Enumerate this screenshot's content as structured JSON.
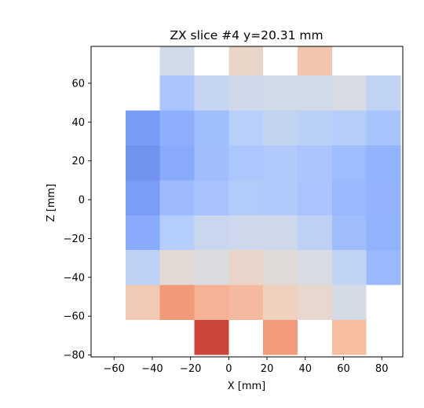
{
  "chart_data": {
    "type": "heatmap",
    "title": "ZX slice #4 y=20.31 mm",
    "xlabel": "X [mm]",
    "ylabel": "Z [mm]",
    "xlim": [
      -72,
      91
    ],
    "ylim": [
      -81,
      79
    ],
    "x_ticks": [
      "−60",
      "−40",
      "−20",
      "0",
      "20",
      "40",
      "60",
      "80"
    ],
    "x_tick_values": [
      -60,
      -40,
      -20,
      0,
      20,
      40,
      60,
      80
    ],
    "y_ticks": [
      "−80",
      "−60",
      "−40",
      "−20",
      "0",
      "20",
      "40",
      "60"
    ],
    "y_tick_values": [
      -80,
      -60,
      -40,
      -20,
      0,
      20,
      40,
      60
    ],
    "colormap": "coolwarm",
    "x_bin_edges": [
      -54,
      -36,
      -18,
      0,
      18,
      36,
      54,
      72,
      90
    ],
    "z_bin_edges": [
      -80,
      -62,
      -44,
      -26,
      -8,
      10,
      28,
      46,
      64,
      79
    ],
    "cells": [
      {
        "x": 1,
        "z": 8,
        "color": "#d1dae9"
      },
      {
        "x": 3,
        "z": 8,
        "color": "#ead5c9"
      },
      {
        "x": 5,
        "z": 8,
        "color": "#f2c6ad"
      },
      {
        "x": 1,
        "z": 7,
        "color": "#abc6fc"
      },
      {
        "x": 2,
        "z": 7,
        "color": "#c6d5f0"
      },
      {
        "x": 3,
        "z": 7,
        "color": "#cfd9ea"
      },
      {
        "x": 4,
        "z": 7,
        "color": "#d1dae9"
      },
      {
        "x": 5,
        "z": 7,
        "color": "#d1dae9"
      },
      {
        "x": 6,
        "z": 7,
        "color": "#d8dce2"
      },
      {
        "x": 7,
        "z": 7,
        "color": "#c1d3f3"
      },
      {
        "x": 0,
        "z": 6,
        "color": "#789df7"
      },
      {
        "x": 1,
        "z": 6,
        "color": "#8eb0fc"
      },
      {
        "x": 2,
        "z": 6,
        "color": "#9fbefe"
      },
      {
        "x": 3,
        "z": 6,
        "color": "#b8cffa"
      },
      {
        "x": 4,
        "z": 6,
        "color": "#c2d3f2"
      },
      {
        "x": 5,
        "z": 6,
        "color": "#bbd0f6"
      },
      {
        "x": 6,
        "z": 6,
        "color": "#b6cdf9"
      },
      {
        "x": 7,
        "z": 6,
        "color": "#a8c4fd"
      },
      {
        "x": 0,
        "z": 5,
        "color": "#6f93ef"
      },
      {
        "x": 1,
        "z": 5,
        "color": "#87aafa"
      },
      {
        "x": 2,
        "z": 5,
        "color": "#a0befe"
      },
      {
        "x": 3,
        "z": 5,
        "color": "#abc7fd"
      },
      {
        "x": 4,
        "z": 5,
        "color": "#b2cafb"
      },
      {
        "x": 5,
        "z": 5,
        "color": "#acc6fd"
      },
      {
        "x": 6,
        "z": 5,
        "color": "#9ebdfe"
      },
      {
        "x": 7,
        "z": 5,
        "color": "#92b3fd"
      },
      {
        "x": 0,
        "z": 4,
        "color": "#7a9ef6"
      },
      {
        "x": 1,
        "z": 4,
        "color": "#9dbafd"
      },
      {
        "x": 2,
        "z": 4,
        "color": "#a7c2fd"
      },
      {
        "x": 3,
        "z": 4,
        "color": "#b3cbfa"
      },
      {
        "x": 4,
        "z": 4,
        "color": "#b2cafb"
      },
      {
        "x": 5,
        "z": 4,
        "color": "#aac5fd"
      },
      {
        "x": 6,
        "z": 4,
        "color": "#9ab8fd"
      },
      {
        "x": 7,
        "z": 4,
        "color": "#93b3fd"
      },
      {
        "x": 0,
        "z": 3,
        "color": "#89abfb"
      },
      {
        "x": 1,
        "z": 3,
        "color": "#b5cdfa"
      },
      {
        "x": 2,
        "z": 3,
        "color": "#c8d6ee"
      },
      {
        "x": 3,
        "z": 3,
        "color": "#cdd8ea"
      },
      {
        "x": 4,
        "z": 3,
        "color": "#cdd8ea"
      },
      {
        "x": 5,
        "z": 3,
        "color": "#bed1f5"
      },
      {
        "x": 6,
        "z": 3,
        "color": "#9fbcfd"
      },
      {
        "x": 7,
        "z": 3,
        "color": "#91b2fd"
      },
      {
        "x": 0,
        "z": 2,
        "color": "#bdd0f5"
      },
      {
        "x": 1,
        "z": 2,
        "color": "#e2d9d4"
      },
      {
        "x": 2,
        "z": 2,
        "color": "#dadcdf"
      },
      {
        "x": 3,
        "z": 2,
        "color": "#e9d5c9"
      },
      {
        "x": 4,
        "z": 2,
        "color": "#dfdad6"
      },
      {
        "x": 5,
        "z": 2,
        "color": "#d6dbe4"
      },
      {
        "x": 6,
        "z": 2,
        "color": "#c1d4f3"
      },
      {
        "x": 7,
        "z": 2,
        "color": "#99b8fe"
      },
      {
        "x": 0,
        "z": 1,
        "color": "#f2c9b3"
      },
      {
        "x": 1,
        "z": 1,
        "color": "#f09a78"
      },
      {
        "x": 2,
        "z": 1,
        "color": "#f5b295"
      },
      {
        "x": 3,
        "z": 1,
        "color": "#f5b99d"
      },
      {
        "x": 4,
        "z": 1,
        "color": "#eed1bf"
      },
      {
        "x": 5,
        "z": 1,
        "color": "#e7d7ce"
      },
      {
        "x": 6,
        "z": 1,
        "color": "#d4dae6"
      },
      {
        "x": 2,
        "z": 0,
        "color": "#cd443a"
      },
      {
        "x": 4,
        "z": 0,
        "color": "#f29b79"
      },
      {
        "x": 6,
        "z": 0,
        "color": "#f6be9f"
      }
    ]
  }
}
